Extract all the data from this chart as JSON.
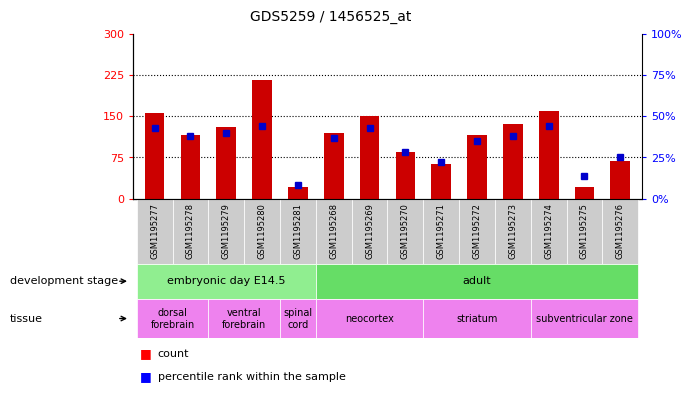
{
  "title": "GDS5259 / 1456525_at",
  "samples": [
    "GSM1195277",
    "GSM1195278",
    "GSM1195279",
    "GSM1195280",
    "GSM1195281",
    "GSM1195268",
    "GSM1195269",
    "GSM1195270",
    "GSM1195271",
    "GSM1195272",
    "GSM1195273",
    "GSM1195274",
    "GSM1195275",
    "GSM1195276"
  ],
  "counts": [
    155,
    115,
    130,
    215,
    22,
    120,
    150,
    85,
    63,
    115,
    135,
    160,
    22,
    68
  ],
  "percentiles": [
    43,
    38,
    40,
    44,
    8,
    37,
    43,
    28,
    22,
    35,
    38,
    44,
    14,
    25
  ],
  "ylim_left": [
    0,
    300
  ],
  "ylim_right": [
    0,
    100
  ],
  "yticks_left": [
    0,
    75,
    150,
    225,
    300
  ],
  "yticks_right": [
    0,
    25,
    50,
    75,
    100
  ],
  "bar_color": "#cc0000",
  "dot_color": "#0000cc",
  "bar_width": 0.55,
  "bg_color": "#ffffff",
  "plot_bg": "#ffffff",
  "dev_stage_groups": [
    {
      "label": "embryonic day E14.5",
      "start": 0,
      "end": 4,
      "color": "#90EE90"
    },
    {
      "label": "adult",
      "start": 5,
      "end": 13,
      "color": "#66DD66"
    }
  ],
  "tissue_groups": [
    {
      "label": "dorsal\nforebrain",
      "start": 0,
      "end": 1,
      "color": "#EE82EE"
    },
    {
      "label": "ventral\nforebrain",
      "start": 2,
      "end": 3,
      "color": "#EE82EE"
    },
    {
      "label": "spinal\ncord",
      "start": 4,
      "end": 4,
      "color": "#EE82EE"
    },
    {
      "label": "neocortex",
      "start": 5,
      "end": 7,
      "color": "#EE82EE"
    },
    {
      "label": "striatum",
      "start": 8,
      "end": 10,
      "color": "#EE82EE"
    },
    {
      "label": "subventricular zone",
      "start": 11,
      "end": 13,
      "color": "#EE82EE"
    }
  ],
  "legend_count_label": "count",
  "legend_pct_label": "percentile rank within the sample",
  "dev_stage_label": "development stage",
  "tissue_label": "tissue",
  "cell_bg": "#cccccc",
  "cell_border": "#aaaaaa"
}
